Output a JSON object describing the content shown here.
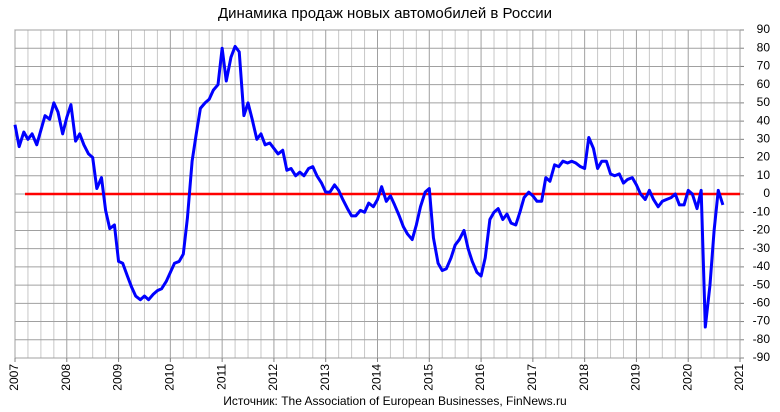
{
  "chart_data": {
    "type": "line",
    "title": "Динамика продаж новых автомобилей в России",
    "source": "Источник: The Association of European Businesses, FinNews.ru",
    "x": [
      2007.0,
      2007.08,
      2007.17,
      2007.25,
      2007.33,
      2007.42,
      2007.5,
      2007.58,
      2007.67,
      2007.75,
      2007.83,
      2007.92,
      2008.0,
      2008.08,
      2008.17,
      2008.25,
      2008.33,
      2008.42,
      2008.5,
      2008.58,
      2008.67,
      2008.75,
      2008.83,
      2008.92,
      2009.0,
      2009.08,
      2009.17,
      2009.25,
      2009.33,
      2009.42,
      2009.5,
      2009.58,
      2009.67,
      2009.75,
      2009.83,
      2009.92,
      2010.0,
      2010.08,
      2010.17,
      2010.25,
      2010.33,
      2010.42,
      2010.5,
      2010.58,
      2010.67,
      2010.75,
      2010.83,
      2010.92,
      2011.0,
      2011.08,
      2011.17,
      2011.25,
      2011.33,
      2011.42,
      2011.5,
      2011.58,
      2011.67,
      2011.75,
      2011.83,
      2011.92,
      2012.0,
      2012.08,
      2012.17,
      2012.25,
      2012.33,
      2012.42,
      2012.5,
      2012.58,
      2012.67,
      2012.75,
      2012.83,
      2012.92,
      2013.0,
      2013.08,
      2013.17,
      2013.25,
      2013.33,
      2013.42,
      2013.5,
      2013.58,
      2013.67,
      2013.75,
      2013.83,
      2013.92,
      2014.0,
      2014.08,
      2014.17,
      2014.25,
      2014.33,
      2014.42,
      2014.5,
      2014.58,
      2014.67,
      2014.75,
      2014.83,
      2014.92,
      2015.0,
      2015.08,
      2015.17,
      2015.25,
      2015.33,
      2015.42,
      2015.5,
      2015.58,
      2015.67,
      2015.75,
      2015.83,
      2015.92,
      2016.0,
      2016.08,
      2016.17,
      2016.25,
      2016.33,
      2016.42,
      2016.5,
      2016.58,
      2016.67,
      2016.75,
      2016.83,
      2016.92,
      2017.0,
      2017.08,
      2017.17,
      2017.25,
      2017.33,
      2017.42,
      2017.5,
      2017.58,
      2017.67,
      2017.75,
      2017.83,
      2017.92,
      2018.0,
      2018.08,
      2018.17,
      2018.25,
      2018.33,
      2018.42,
      2018.5,
      2018.58,
      2018.67,
      2018.75,
      2018.83,
      2018.92,
      2019.0,
      2019.08,
      2019.17,
      2019.25,
      2019.33,
      2019.42,
      2019.5,
      2019.58,
      2019.67,
      2019.75,
      2019.83,
      2019.92,
      2020.0,
      2020.08,
      2020.17,
      2020.25,
      2020.33,
      2020.42,
      2020.5,
      2020.58,
      2020.67
    ],
    "series": [
      {
        "color": "#0000ff",
        "values": [
          38,
          26,
          34,
          30,
          33,
          27,
          35,
          43,
          41,
          50,
          45,
          33,
          42,
          49,
          29,
          33,
          27,
          22,
          20,
          3,
          9,
          -9,
          -19,
          -17,
          -37,
          -38,
          -45,
          -51,
          -56,
          -58,
          -56,
          -58,
          -55,
          -53,
          -52,
          -48,
          -43,
          -38,
          -37,
          -33,
          -13,
          18,
          33,
          47,
          50,
          52,
          57,
          60,
          80,
          62,
          75,
          81,
          78,
          43,
          50,
          41,
          30,
          33,
          27,
          28,
          25,
          22,
          24,
          13,
          14,
          10,
          12,
          10,
          14,
          15,
          10,
          6,
          1,
          1,
          5,
          2,
          -3,
          -8,
          -12,
          -12,
          -9,
          -10,
          -5,
          -7,
          -3,
          4,
          -4,
          -1,
          -6,
          -12,
          -18,
          -22,
          -25,
          -17,
          -7,
          1,
          3,
          -24,
          -38,
          -42,
          -41,
          -35,
          -28,
          -25,
          -20,
          -30,
          -37,
          -43,
          -45,
          -35,
          -14,
          -10,
          -8,
          -14,
          -11,
          -16,
          -17,
          -10,
          -2,
          1,
          -1,
          -4,
          -4,
          9,
          7,
          16,
          15,
          18,
          17,
          18,
          17,
          15,
          14,
          31,
          25,
          14,
          18,
          18,
          11,
          10,
          11,
          6,
          8,
          9,
          5,
          0,
          -3,
          2,
          -3,
          -7,
          -4,
          -3,
          -2,
          0,
          -6,
          -6,
          2,
          0,
          -8,
          2,
          -73,
          -50,
          -20,
          2,
          -6
        ]
      }
    ],
    "reference_line": {
      "value": 0,
      "color": "#ff0000"
    },
    "xlim": [
      2007,
      2021
    ],
    "xticks": [
      2007,
      2008,
      2009,
      2010,
      2011,
      2012,
      2013,
      2014,
      2015,
      2016,
      2017,
      2018,
      2019,
      2020,
      2021
    ],
    "ylim": [
      -90,
      90
    ],
    "yticks": [
      -90,
      -80,
      -70,
      -60,
      -50,
      -40,
      -30,
      -20,
      -10,
      0,
      10,
      20,
      30,
      40,
      50,
      60,
      70,
      80,
      90
    ],
    "grid": true
  }
}
